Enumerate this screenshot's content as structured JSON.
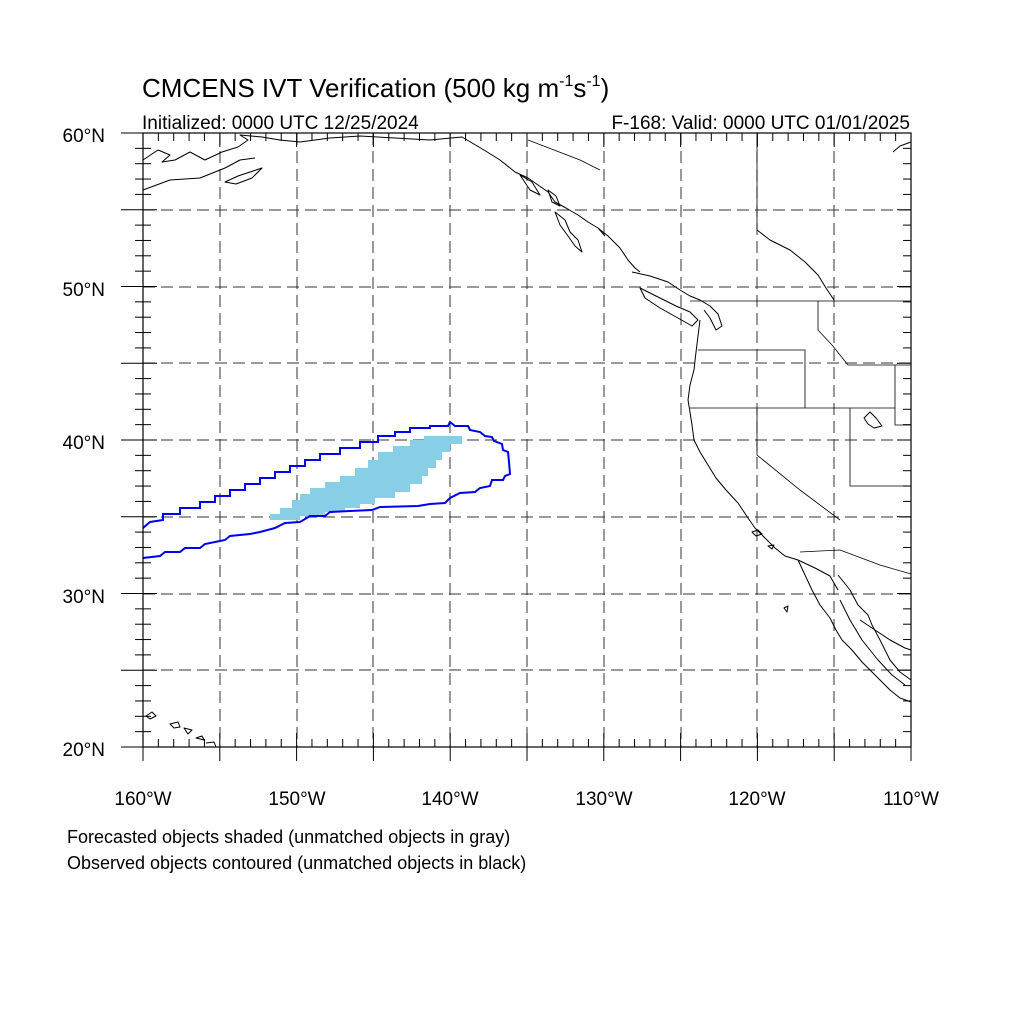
{
  "title": {
    "main": "CMCENS IVT Verification (500 kg m",
    "sup1": "-1",
    "mid": "s",
    "sup2": "-1",
    "close": ")"
  },
  "init_label": "Initialized: 0000 UTC 12/25/2024",
  "valid_label": "F-168: Valid: 0000 UTC 01/01/2025",
  "lon_ticks": [
    "160°W",
    "150°W",
    "140°W",
    "130°W",
    "120°W",
    "110°W"
  ],
  "lat_ticks": [
    "60°N",
    "50°N",
    "40°N",
    "30°N",
    "20°N"
  ],
  "map_extent": {
    "lon": [
      -160,
      -110
    ],
    "lat": [
      20,
      60
    ]
  },
  "grid_interval_deg": 5,
  "colors": {
    "forecast_fill": "#87CEE6",
    "observed_contour": "#0000EE"
  },
  "footnote1": "Forecasted objects shaded (unmatched objects in gray)",
  "footnote2": "Observed objects contoured (unmatched objects in black)"
}
